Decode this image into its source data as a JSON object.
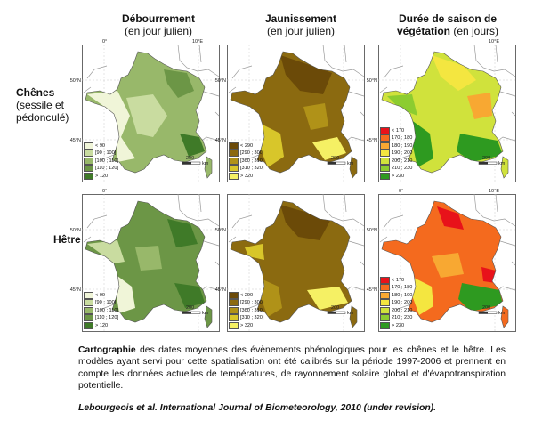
{
  "columns": [
    {
      "title": "Débourrement",
      "subtitle": "(en jour julien)"
    },
    {
      "title": "Jaunissement",
      "subtitle": "(en jour julien)"
    },
    {
      "title": "Durée de saison de",
      "subtitle": "végétation (en jours)",
      "subtitle_bold": "végétation",
      "subtitle_rest": " (en jours)"
    }
  ],
  "rows": [
    {
      "title": "Chênes",
      "subtitle": "(sessile et pédonculé)",
      "subtitle_line1": "(sessile et",
      "subtitle_line2": "pédonculé)"
    },
    {
      "title": "Hêtre"
    }
  ],
  "map_labels": {
    "lat_50": "50°N",
    "lat_45": "45°N",
    "lon_0": "0°",
    "lon_10": "10°E",
    "scale": "200",
    "unit": "km"
  },
  "legends": {
    "debourrement": {
      "items": [
        "< 90",
        "[90 ; 100]",
        "[100 ; 110]",
        "[110 ; 120]",
        "> 120"
      ],
      "colors": [
        "#f0f5d8",
        "#c9dca0",
        "#98b86a",
        "#6c9646",
        "#3f7a28"
      ]
    },
    "jaunissement": {
      "items": [
        "< 290",
        "[290 ; 300]",
        "[300 ; 310]",
        "[310 ; 320]",
        "> 320"
      ],
      "colors": [
        "#6b4a08",
        "#8b6a10",
        "#b09218",
        "#d8c62a",
        "#f5f064"
      ]
    },
    "saison": {
      "items": [
        "< 170",
        "170 ; 180",
        "180 ; 190",
        "190 ; 200",
        "200 ; 210",
        "210 ; 230",
        "> 230"
      ],
      "colors": [
        "#e8121a",
        "#f46a1e",
        "#f8a832",
        "#f4e640",
        "#d0e23c",
        "#8ccc30",
        "#2e9a20"
      ]
    }
  },
  "caption": {
    "bold_lead": "Cartographie",
    "text": " des dates moyennes des évènements phénologiques pour les chênes et le hêtre. Les modèles ayant servi pour cette spatialisation ont été calibrés sur la période 1997-2006 et prennent en compte les données actuelles de températures, de rayonnement solaire global et d'évapotranspiration potentielle."
  },
  "citation": "Lebourgeois et al. International Journal of Biometeorology, 2010 (under revision)."
}
